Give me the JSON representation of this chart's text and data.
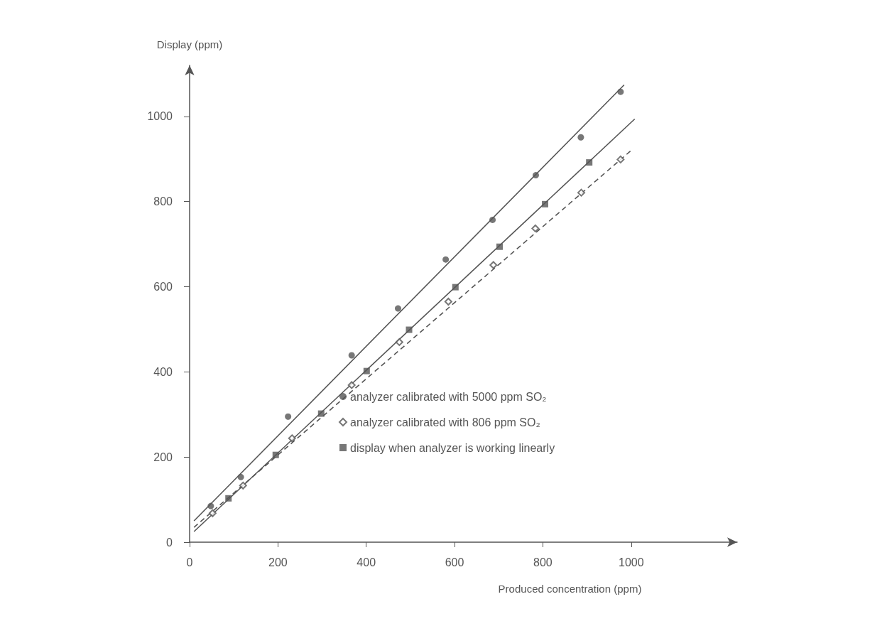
{
  "chart_data": {
    "type": "scatter",
    "xlabel": "Produced concentration (ppm)",
    "ylabel": "Display (ppm)",
    "xlim": [
      0,
      1240
    ],
    "xticks": [
      0,
      200,
      400,
      600,
      800,
      1000
    ],
    "ylim": [
      0,
      1120
    ],
    "yticks": [
      0,
      200,
      400,
      600,
      800,
      1000
    ],
    "grid": false,
    "legend": "bottom",
    "series": [
      {
        "name": "analyzer calibrated with 5000 ppm SO₂",
        "marker": "circle",
        "color": "#555555",
        "x": [
          48,
          116,
          223,
          367,
          472,
          580,
          686,
          784,
          886,
          976
        ],
        "values": [
          85,
          153,
          295,
          439,
          549,
          664,
          757,
          862,
          951,
          1058
        ]
      },
      {
        "name": "analyzer calibrated with 806 ppm SO₂",
        "marker": "diamond",
        "color": "#555555",
        "x": [
          52,
          121,
          232,
          367,
          475,
          586,
          688,
          783,
          887,
          976
        ],
        "values": [
          68,
          133,
          244,
          369,
          470,
          565,
          651,
          737,
          821,
          899
        ]
      },
      {
        "name": "display when analyzer is working linearly",
        "marker": "square",
        "color": "#555555",
        "x": [
          88,
          195,
          298,
          401,
          497,
          602,
          702,
          805,
          905
        ],
        "values": [
          103,
          205,
          302,
          402,
          499,
          599,
          694,
          794,
          892
        ]
      },
      {
        "type": "line",
        "marker": "none",
        "line_style": "solid",
        "color": "#555555",
        "x": [
          10,
          984
        ],
        "values": [
          50,
          1074
        ]
      },
      {
        "type": "line",
        "marker": "none",
        "line_style": "dashed",
        "color": "#555555",
        "x": [
          10,
          1002
        ],
        "values": [
          35,
          922
        ]
      },
      {
        "type": "line",
        "marker": "none",
        "line_style": "solid",
        "color": "#555555",
        "x": [
          10,
          1008
        ],
        "values": [
          25,
          994
        ]
      }
    ]
  }
}
